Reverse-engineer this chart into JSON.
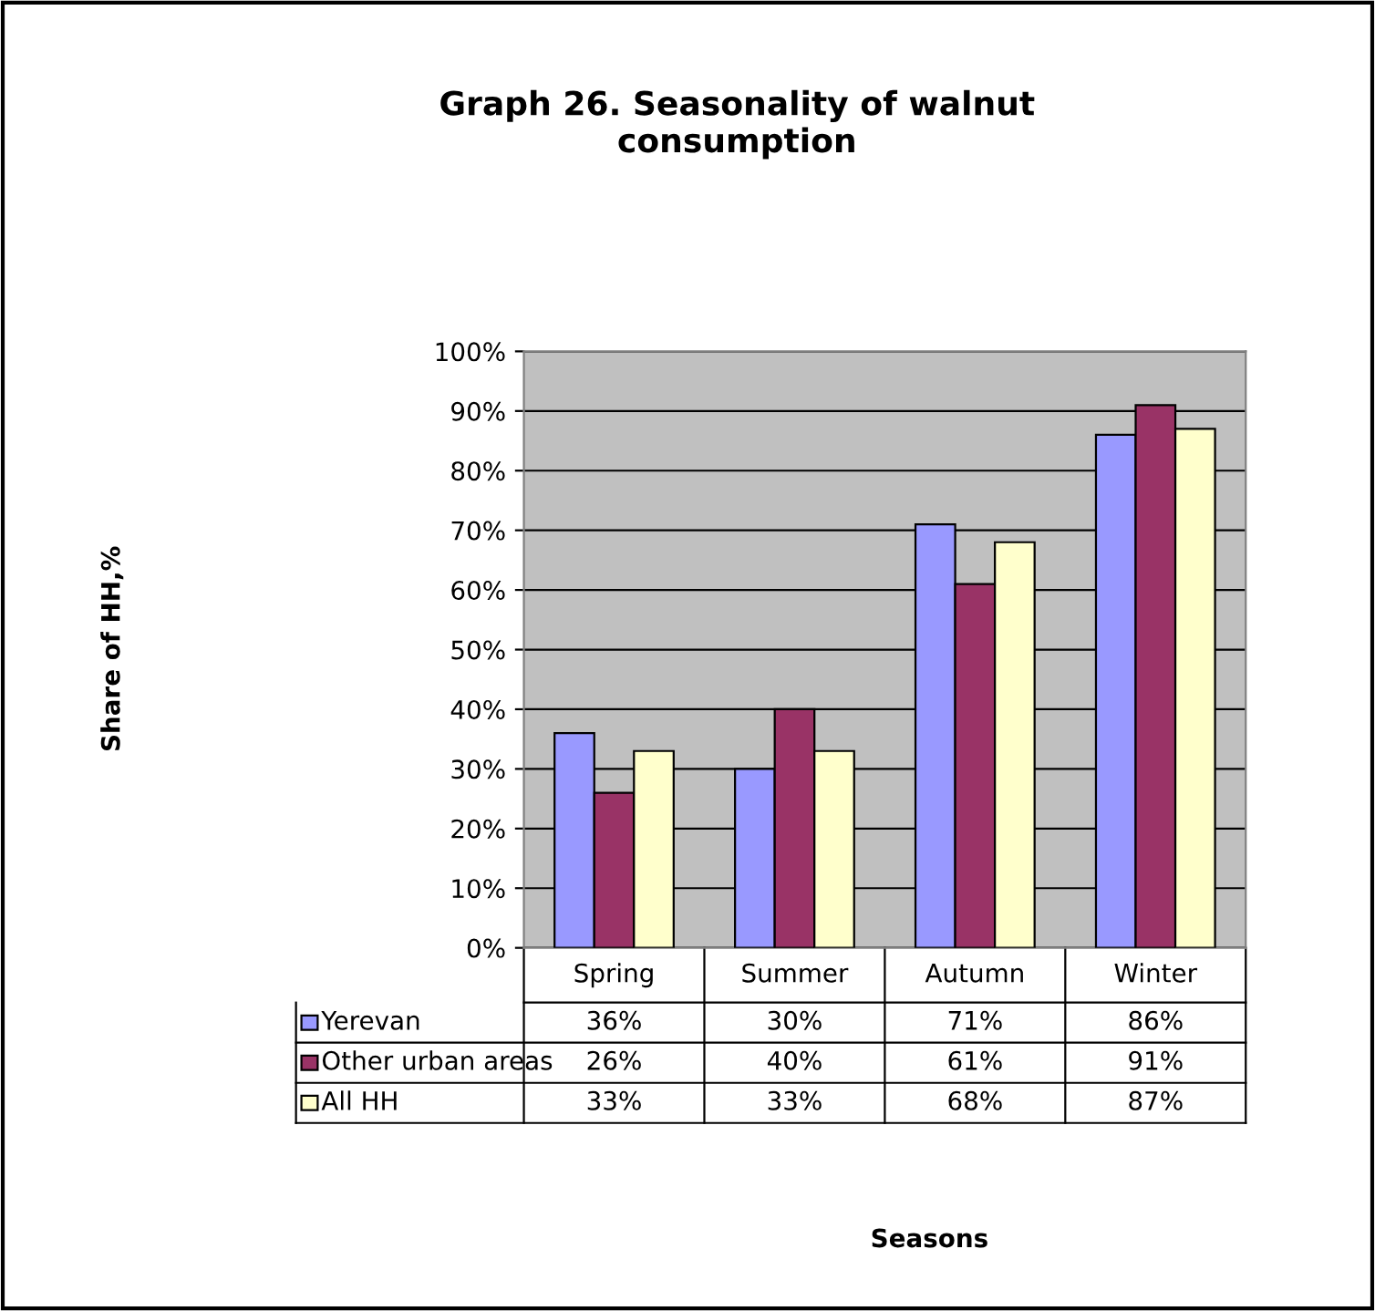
{
  "chart_data": {
    "type": "bar",
    "title": "Graph 26. Seasonality of walnut\nconsumption",
    "annotations": [
      "Share of HH,%",
      "Seasons"
    ],
    "categories": [
      "Spring",
      "Summer",
      "Autumn",
      "Winter"
    ],
    "series": [
      {
        "name": "Yerevan",
        "color": "#9999ff",
        "values": [
          36,
          30,
          71,
          86
        ],
        "value_labels": [
          "36%",
          "30%",
          "71%",
          "86%"
        ]
      },
      {
        "name": "Other urban areas",
        "color": "#993366",
        "values": [
          26,
          40,
          61,
          91
        ],
        "value_labels": [
          "26%",
          "40%",
          "61%",
          "91%"
        ]
      },
      {
        "name": "All HH",
        "color": "#ffffcc",
        "values": [
          33,
          33,
          68,
          87
        ],
        "value_labels": [
          "33%",
          "33%",
          "68%",
          "87%"
        ]
      }
    ],
    "ylim": [
      0,
      100
    ],
    "yticks": [
      {
        "value": 0,
        "label": "0%"
      },
      {
        "value": 10,
        "label": "10%"
      },
      {
        "value": 20,
        "label": "20%"
      },
      {
        "value": 30,
        "label": "30%"
      },
      {
        "value": 40,
        "label": "40%"
      },
      {
        "value": 50,
        "label": "50%"
      },
      {
        "value": 60,
        "label": "60%"
      },
      {
        "value": 70,
        "label": "70%"
      },
      {
        "value": 80,
        "label": "80%"
      },
      {
        "value": 90,
        "label": "90%"
      },
      {
        "value": 100,
        "label": "100%"
      }
    ],
    "grid": "y",
    "legend": "bottom left"
  }
}
